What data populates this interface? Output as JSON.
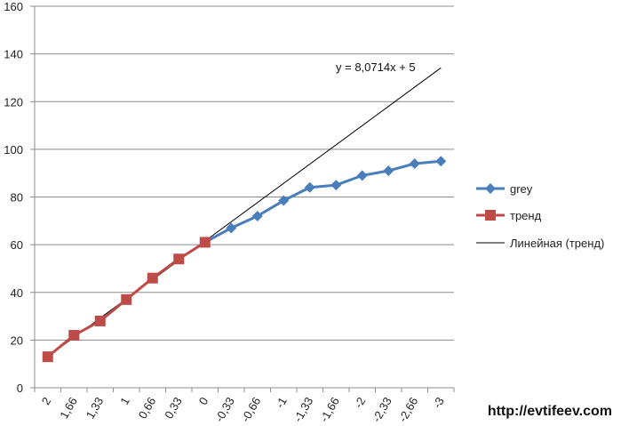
{
  "chart_data": {
    "type": "line",
    "categories": [
      "2",
      "1,66",
      "1,33",
      "1",
      "0,66",
      "0,33",
      "0",
      "-0,33",
      "-0,66",
      "-1",
      "-1,33",
      "-1,66",
      "-2",
      "-2,33",
      "-2,66",
      "-3"
    ],
    "ylim": [
      0,
      160
    ],
    "yticks": [
      "0",
      "20",
      "40",
      "60",
      "80",
      "100",
      "120",
      "140",
      "160"
    ],
    "grid": true,
    "legend_position": "right",
    "series": [
      {
        "name": "grey",
        "color": "#4a7ebb",
        "marker": "diamond",
        "values": [
          null,
          null,
          null,
          null,
          null,
          null,
          61,
          67,
          72,
          78.5,
          84,
          85,
          89,
          91,
          94,
          95
        ]
      },
      {
        "name": "тренд",
        "color": "#be4b48",
        "marker": "square",
        "values": [
          13,
          22,
          28,
          37,
          46,
          54,
          61,
          null,
          null,
          null,
          null,
          null,
          null,
          null,
          null,
          null
        ]
      }
    ],
    "trendline": {
      "name": "Линейная (тренд)",
      "color": "#000000",
      "slope": 8.0714,
      "intercept": 5,
      "x_range": [
        1,
        16
      ],
      "equation": "y = 8,0714x + 5"
    }
  },
  "watermark": "http://evtifeev.com"
}
